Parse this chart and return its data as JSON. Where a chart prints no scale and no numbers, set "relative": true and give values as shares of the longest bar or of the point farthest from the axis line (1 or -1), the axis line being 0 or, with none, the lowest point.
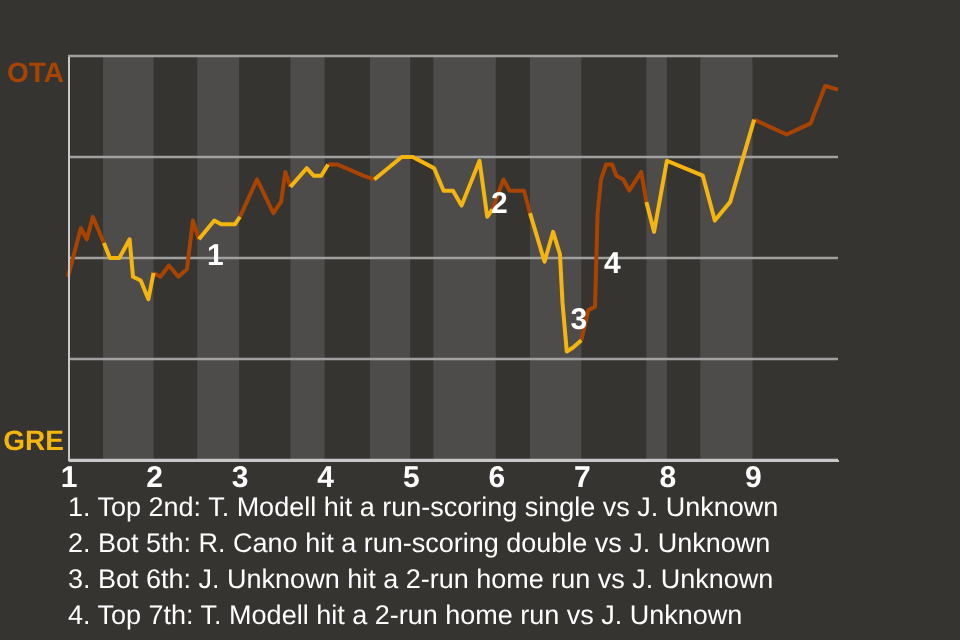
{
  "chart_data": {
    "type": "line",
    "relative": true,
    "x": [
      1.0,
      1.15,
      1.22,
      1.29,
      1.42,
      1.49,
      1.6,
      1.72,
      1.76,
      1.85,
      1.94,
      2.0,
      2.08,
      2.18,
      2.29,
      2.39,
      2.46,
      2.53,
      2.71,
      2.79,
      2.95,
      3.01,
      3.21,
      3.4,
      3.49,
      3.54,
      3.6,
      3.79,
      3.87,
      3.96,
      4.04,
      4.15,
      4.45,
      4.58,
      4.9,
      5.03,
      5.28,
      5.39,
      5.5,
      5.6,
      5.81,
      5.9,
      5.96,
      6.09,
      6.16,
      6.33,
      6.4,
      6.57,
      6.67,
      6.75,
      6.78,
      6.83,
      6.9,
      7.0,
      7.08,
      7.16,
      7.19,
      7.23,
      7.29,
      7.36,
      7.41,
      7.49,
      7.56,
      7.7,
      7.76,
      7.85,
      8.0,
      8.42,
      8.56,
      8.74,
      9.02,
      9.4,
      9.68,
      9.85,
      10.0
    ],
    "series": [
      {
        "color": "#a94400",
        "values": [
          0.49,
          0.62,
          0.59,
          0.65,
          0.58,
          null,
          null,
          null,
          null,
          null,
          null,
          0.5,
          0.49,
          0.52,
          0.49,
          0.51,
          0.64,
          0.59,
          null,
          null,
          null,
          0.65,
          0.75,
          0.66,
          0.69,
          0.77,
          0.73,
          null,
          null,
          null,
          0.79,
          0.79,
          0.76,
          0.75,
          null,
          0.81,
          0.78,
          null,
          null,
          null,
          null,
          null,
          0.67,
          0.75,
          0.72,
          0.72,
          0.66,
          null,
          null,
          null,
          null,
          null,
          null,
          0.32,
          0.4,
          0.41,
          0.66,
          0.75,
          0.79,
          0.79,
          0.76,
          0.75,
          0.72,
          0.77,
          0.69,
          null,
          0.8,
          0.76,
          null,
          null,
          0.91,
          0.87,
          0.9,
          1,
          0.99
        ]
      },
      {
        "color": "#f5b50f",
        "values": [
          null,
          null,
          null,
          null,
          0.58,
          0.54,
          0.54,
          0.59,
          0.49,
          0.48,
          0.43,
          0.5,
          null,
          null,
          null,
          null,
          null,
          0.59,
          0.64,
          0.63,
          0.63,
          0.65,
          null,
          null,
          null,
          null,
          0.73,
          0.78,
          0.76,
          0.76,
          0.79,
          null,
          null,
          0.75,
          0.81,
          0.81,
          0.78,
          0.72,
          0.72,
          0.68,
          0.8,
          0.65,
          0.67,
          null,
          null,
          null,
          0.66,
          0.53,
          0.61,
          0.55,
          0.42,
          0.29,
          0.3,
          0.32,
          null,
          null,
          null,
          null,
          null,
          null,
          null,
          null,
          null,
          null,
          0.69,
          0.61,
          0.8,
          0.76,
          0.64,
          0.69,
          0.91,
          null,
          null,
          null,
          null
        ]
      }
    ],
    "xlim": [
      1,
      10
    ],
    "xticks": [
      1,
      2,
      3,
      4,
      5,
      6,
      7,
      8,
      9
    ],
    "ref_lines": [
      {
        "axis": "y",
        "value": 0,
        "label": "GRE",
        "color": "#c8c8c8"
      },
      {
        "axis": "y",
        "value": 0.27,
        "color": "#a0a0a0"
      },
      {
        "axis": "y",
        "value": 0.54,
        "color": "#a0a0a0"
      },
      {
        "axis": "y",
        "value": 0.81,
        "color": "#a0a0a0"
      },
      {
        "axis": "y",
        "value": 1.08,
        "label": "OTA",
        "color": "#a0a0a0"
      }
    ],
    "bands": [
      {
        "axis": "x",
        "from": 1.41,
        "to": 2.0,
        "color": "#4d4c4a"
      },
      {
        "axis": "x",
        "from": 2.51,
        "to": 3.0,
        "color": "#4d4c4a"
      },
      {
        "axis": "x",
        "from": 3.6,
        "to": 4.0,
        "color": "#4d4c4a"
      },
      {
        "axis": "x",
        "from": 4.53,
        "to": 5.0,
        "color": "#4d4c4a"
      },
      {
        "axis": "x",
        "from": 5.27,
        "to": 6.0,
        "color": "#4d4c4a"
      },
      {
        "axis": "x",
        "from": 6.4,
        "to": 7.0,
        "color": "#4d4c4a"
      },
      {
        "axis": "x",
        "from": 7.76,
        "to": 8.0,
        "color": "#4d4c4a"
      },
      {
        "axis": "x",
        "from": 8.39,
        "to": 9.0,
        "color": "#4d4c4a"
      }
    ],
    "annotations": [
      {
        "text": "1",
        "x": 2.53,
        "y": 0.59
      },
      {
        "text": "2",
        "x": 5.85,
        "y": 0.73
      },
      {
        "text": "3",
        "x": 6.78,
        "y": 0.42
      },
      {
        "text": "4",
        "x": 7.17,
        "y": 0.57
      },
      "1. Top 2nd: T. Modell hit a run-scoring single vs J. Unknown",
      "2. Bot 5th: R. Cano hit a run-scoring double vs J. Unknown",
      "3. Bot 6th: J. Unknown hit a 2-run home run vs J. Unknown",
      "4. Top 7th: T. Modell hit a 2-run home run vs J. Unknown"
    ]
  }
}
